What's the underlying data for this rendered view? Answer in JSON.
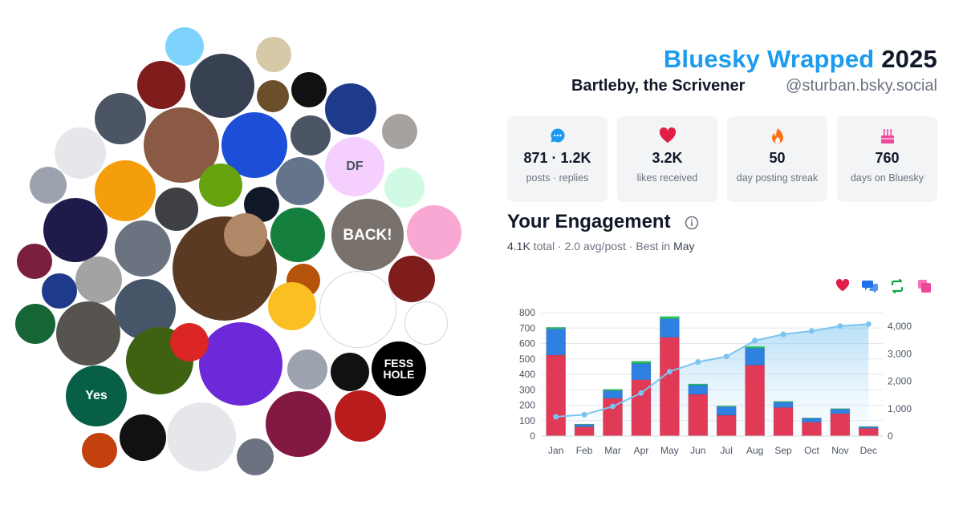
{
  "header": {
    "brand": "Bluesky Wrapped",
    "year": "2025",
    "display_name": "Bartleby, the Scrivener",
    "handle": "@sturban.bsky.social"
  },
  "stats": [
    {
      "icon": "chat-bubble-icon",
      "value": "871 · 1.2K",
      "label": "posts · replies",
      "color": "#1d9bf0"
    },
    {
      "icon": "heart-icon",
      "value": "3.2K",
      "label": "likes received",
      "color": "#e11d48"
    },
    {
      "icon": "flame-icon",
      "value": "50",
      "label": "day posting streak",
      "color": "#f97316"
    },
    {
      "icon": "cake-icon",
      "value": "760",
      "label": "days on Bluesky",
      "color": "#ec4899"
    }
  ],
  "engagement": {
    "title": "Your Engagement",
    "total": "4.1K",
    "total_label": "total",
    "avg": "2.0 avg/post",
    "best_label": "Best in",
    "best_month": "May"
  },
  "legend_icons": [
    {
      "icon": "heart-icon",
      "color": "#e11d48"
    },
    {
      "icon": "replies-icon",
      "color": "#1d72e8"
    },
    {
      "icon": "repost-icon",
      "color": "#16a34a"
    },
    {
      "icon": "quote-icon",
      "color": "#ec4899"
    }
  ],
  "avatars": [
    {
      "label": "",
      "color": "#7dd3fc"
    },
    {
      "label": "",
      "color": "#d6c9a8"
    },
    {
      "label": "",
      "color": "#7f1d1d"
    },
    {
      "label": "",
      "color": "#374151"
    },
    {
      "label": "",
      "color": "#6b4f2a"
    },
    {
      "label": "",
      "color": "#111111"
    },
    {
      "label": "",
      "color": "#1e3a8a"
    },
    {
      "label": "",
      "color": "#4b5563"
    },
    {
      "label": "",
      "color": "#8a5a44"
    },
    {
      "label": "",
      "color": "#1d4ed8"
    },
    {
      "label": "",
      "color": "#4b5563"
    },
    {
      "label": "",
      "color": "#e5e7eb"
    },
    {
      "label": "DF",
      "color": "#f5d0fe"
    },
    {
      "label": "",
      "color": "#a8a29e"
    },
    {
      "label": "",
      "color": "#9ca3af"
    },
    {
      "label": "",
      "color": "#f59e0b"
    },
    {
      "label": "",
      "color": "#3f3f46"
    },
    {
      "label": "",
      "color": "#65a30d"
    },
    {
      "label": "",
      "color": "#111827"
    },
    {
      "label": "",
      "color": "#64748b"
    },
    {
      "label": "",
      "color": "#d1fae5"
    },
    {
      "label": "",
      "color": "#1e1b4b"
    },
    {
      "label": "BACK!",
      "color": "#78716c"
    },
    {
      "label": "",
      "color": "#6b7280"
    },
    {
      "label": "",
      "color": "#5b3a24"
    },
    {
      "label": "",
      "color": "#b08968"
    },
    {
      "label": "",
      "color": "#15803d"
    },
    {
      "label": "",
      "color": "#f9a8d4"
    },
    {
      "label": "",
      "color": "#7a1f3d"
    },
    {
      "label": "",
      "color": "#a3a3a3"
    },
    {
      "label": "",
      "color": "#1e3a8a"
    },
    {
      "label": "",
      "color": "#b45309"
    },
    {
      "label": "",
      "color": "#7f1d1d"
    },
    {
      "label": "",
      "color": "#475569"
    },
    {
      "label": "",
      "color": "#57534e"
    },
    {
      "label": "",
      "color": "#3f6212"
    },
    {
      "label": "",
      "color": "#6d28d9"
    },
    {
      "label": "",
      "color": "#fbbf24"
    },
    {
      "label": "",
      "color": "#dc2626"
    },
    {
      "label": "",
      "color": "#166534"
    },
    {
      "label": "",
      "color": "#ffffff"
    },
    {
      "label": "",
      "color": "#ffffff"
    },
    {
      "label": "",
      "color": "#9ca3af"
    },
    {
      "label": "",
      "color": "#111111"
    },
    {
      "label": "FESS HOLE",
      "color": "#000000"
    },
    {
      "label": "Yes",
      "color": "#065f46"
    },
    {
      "label": "",
      "color": "#111111"
    },
    {
      "label": "",
      "color": "#e5e7eb"
    },
    {
      "label": "",
      "color": "#831843"
    },
    {
      "label": "",
      "color": "#b91c1c"
    },
    {
      "label": "",
      "color": "#c2410c"
    },
    {
      "label": "",
      "color": "#6b7280"
    }
  ],
  "chart_data": {
    "type": "bar",
    "categories": [
      "Jan",
      "Feb",
      "Mar",
      "Apr",
      "May",
      "Jun",
      "Jul",
      "Aug",
      "Sep",
      "Oct",
      "Nov",
      "Dec"
    ],
    "series": [
      {
        "values": [
          525,
          60,
          245,
          365,
          640,
          270,
          135,
          460,
          185,
          90,
          145,
          50
        ],
        "color": "#e03a57"
      },
      {
        "values": [
          170,
          15,
          50,
          105,
          120,
          60,
          55,
          110,
          35,
          25,
          30,
          10
        ],
        "color": "#2f80e0"
      },
      {
        "values": [
          10,
          2,
          8,
          15,
          15,
          8,
          5,
          10,
          5,
          3,
          3,
          2
        ],
        "color": "#22c55e"
      }
    ],
    "cumulative": [
      700,
      780,
      1080,
      1570,
      2350,
      2700,
      2900,
      3480,
      3710,
      3830,
      4010,
      4080
    ],
    "ylim_left": [
      0,
      800
    ],
    "ylim_right": [
      0,
      4500
    ],
    "left_ticks": [
      "0",
      "100",
      "200",
      "300",
      "400",
      "500",
      "600",
      "700",
      "800"
    ],
    "right_ticks": [
      "0",
      "1,000",
      "2,000",
      "3,000",
      "4,000"
    ]
  }
}
